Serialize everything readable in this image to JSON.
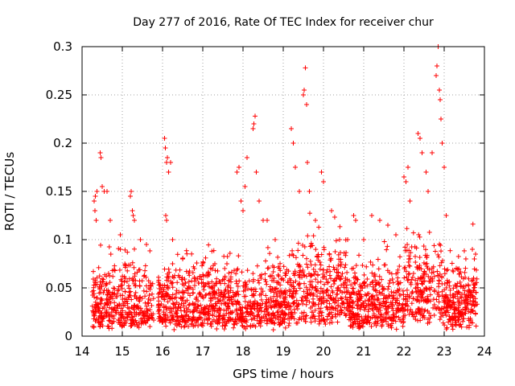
{
  "chart_data": {
    "type": "scatter",
    "title": "Day 277 of 2016, Rate Of TEC Index for receiver chur",
    "xlabel": "GPS time / hours",
    "ylabel": "ROTI / TECUs",
    "xlim": [
      14,
      24
    ],
    "ylim": [
      0,
      0.3
    ],
    "xticks": [
      14,
      15,
      16,
      17,
      18,
      19,
      20,
      21,
      22,
      23,
      24
    ],
    "xtick_labels": [
      "14",
      "15",
      "16",
      "17",
      "18",
      "19",
      "20",
      "21",
      "22",
      "23",
      "24"
    ],
    "yticks": [
      0,
      0.05,
      0.1,
      0.15,
      0.2,
      0.25,
      0.3
    ],
    "ytick_labels": [
      "0",
      "0.05",
      "0.1",
      "0.15",
      "0.2",
      "0.25",
      "0.3"
    ],
    "grid": true,
    "marker": "plus",
    "color": "#ff0000",
    "data_gaps_hours": [
      [
        15.78,
        15.88
      ]
    ],
    "series": [
      {
        "name": "ROTI",
        "points": [
          [
            14.3,
            0.14
          ],
          [
            14.32,
            0.13
          ],
          [
            14.33,
            0.145
          ],
          [
            14.35,
            0.12
          ],
          [
            14.37,
            0.15
          ],
          [
            14.45,
            0.19
          ],
          [
            14.47,
            0.185
          ],
          [
            14.5,
            0.155
          ],
          [
            14.55,
            0.15
          ],
          [
            14.62,
            0.15
          ],
          [
            14.7,
            0.12
          ],
          [
            14.95,
            0.105
          ],
          [
            15.2,
            0.145
          ],
          [
            15.22,
            0.15
          ],
          [
            15.25,
            0.13
          ],
          [
            15.27,
            0.125
          ],
          [
            15.3,
            0.12
          ],
          [
            15.45,
            0.1
          ],
          [
            15.6,
            0.095
          ],
          [
            16.05,
            0.205
          ],
          [
            16.07,
            0.195
          ],
          [
            16.1,
            0.18
          ],
          [
            16.12,
            0.185
          ],
          [
            16.15,
            0.17
          ],
          [
            16.2,
            0.18
          ],
          [
            16.08,
            0.125
          ],
          [
            16.1,
            0.12
          ],
          [
            16.25,
            0.1
          ],
          [
            16.5,
            0.08
          ],
          [
            17.0,
            0.075
          ],
          [
            17.3,
            0.075
          ],
          [
            17.6,
            0.075
          ],
          [
            17.85,
            0.17
          ],
          [
            17.9,
            0.175
          ],
          [
            17.95,
            0.14
          ],
          [
            18.0,
            0.13
          ],
          [
            18.05,
            0.155
          ],
          [
            18.1,
            0.185
          ],
          [
            18.25,
            0.215
          ],
          [
            18.27,
            0.22
          ],
          [
            18.3,
            0.228
          ],
          [
            18.33,
            0.17
          ],
          [
            18.4,
            0.14
          ],
          [
            18.5,
            0.12
          ],
          [
            18.6,
            0.12
          ],
          [
            18.8,
            0.1
          ],
          [
            19.2,
            0.215
          ],
          [
            19.25,
            0.2
          ],
          [
            19.3,
            0.175
          ],
          [
            19.4,
            0.15
          ],
          [
            19.5,
            0.25
          ],
          [
            19.52,
            0.255
          ],
          [
            19.55,
            0.278
          ],
          [
            19.58,
            0.24
          ],
          [
            19.6,
            0.18
          ],
          [
            19.65,
            0.15
          ],
          [
            19.8,
            0.12
          ],
          [
            19.95,
            0.17
          ],
          [
            20.0,
            0.16
          ],
          [
            20.2,
            0.13
          ],
          [
            20.4,
            0.1
          ],
          [
            20.6,
            0.1
          ],
          [
            20.75,
            0.125
          ],
          [
            20.8,
            0.12
          ],
          [
            21.0,
            0.1
          ],
          [
            21.2,
            0.125
          ],
          [
            21.4,
            0.12
          ],
          [
            21.6,
            0.115
          ],
          [
            21.8,
            0.105
          ],
          [
            22.0,
            0.165
          ],
          [
            22.05,
            0.16
          ],
          [
            22.1,
            0.175
          ],
          [
            22.15,
            0.14
          ],
          [
            22.35,
            0.21
          ],
          [
            22.4,
            0.205
          ],
          [
            22.45,
            0.19
          ],
          [
            22.55,
            0.17
          ],
          [
            22.6,
            0.15
          ],
          [
            22.7,
            0.19
          ],
          [
            22.8,
            0.27
          ],
          [
            22.82,
            0.28
          ],
          [
            22.85,
            0.3
          ],
          [
            22.88,
            0.255
          ],
          [
            22.9,
            0.245
          ],
          [
            22.92,
            0.225
          ],
          [
            22.95,
            0.2
          ],
          [
            23.0,
            0.175
          ],
          [
            23.05,
            0.125
          ],
          [
            23.3,
            0.07
          ],
          [
            23.7,
            0.09
          ],
          [
            23.75,
            0.08
          ],
          [
            23.78,
            0.085
          ]
        ]
      }
    ]
  }
}
